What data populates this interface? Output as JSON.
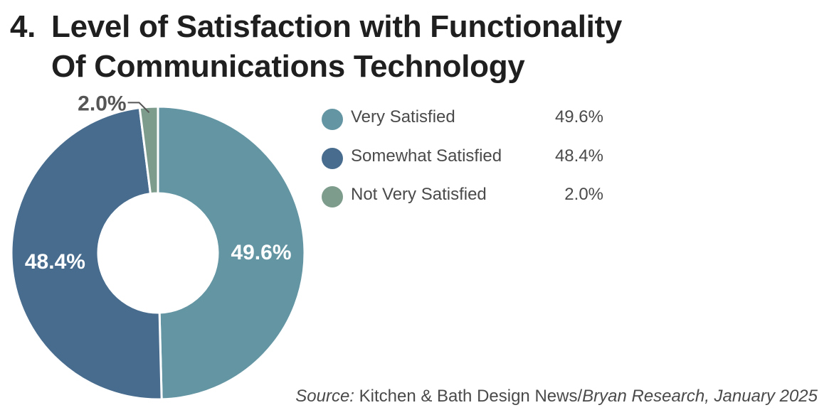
{
  "title": {
    "number": "4.",
    "line1": "Level of Satisfaction with Functionality",
    "line2": "Of Communications Technology"
  },
  "chart_data": {
    "type": "pie",
    "style": "donut",
    "categories": [
      "Very Satisfied",
      "Somewhat Satisfied",
      "Not Very Satisfied"
    ],
    "values": [
      49.6,
      48.4,
      2.0
    ],
    "unit": "%",
    "data_labels": [
      "49.6%",
      "48.4%",
      "2.0%"
    ],
    "colors": [
      "#6395a3",
      "#476c8e",
      "#7d9c8c"
    ],
    "legend_position": "right",
    "legend": [
      {
        "label": "Very Satisfied",
        "value": "49.6%",
        "color": "#6395a3"
      },
      {
        "label": "Somewhat Satisfied",
        "value": "48.4%",
        "color": "#476c8e"
      },
      {
        "label": "Not Very Satisfied",
        "value": "2.0%",
        "color": "#7d9c8c"
      }
    ]
  },
  "source": {
    "prefix": "Source:",
    "publication": "Kitchen & Bath Design News/",
    "rest": "Bryan Research, January 2025"
  }
}
